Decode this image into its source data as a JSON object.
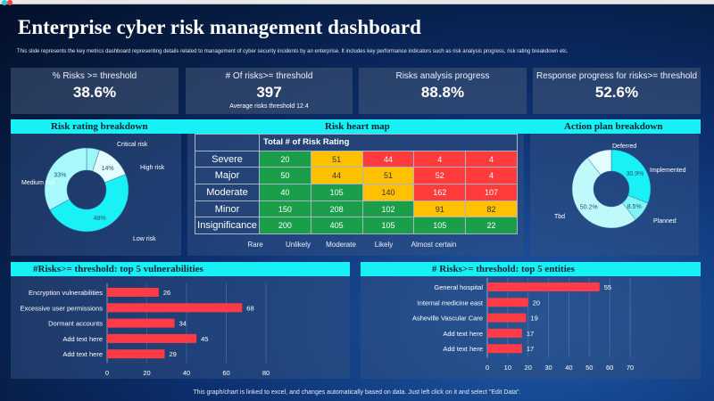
{
  "title": "Enterprise cyber risk management dashboard",
  "subtitle": "This slide represents the key metrics dashboard representing details related to management  of cyber security incidents by an enterprise. It includes key performance indicators such as risk analysis progress, risk rating breakdown etc.",
  "kpis": [
    {
      "label": "% Risks >= threshold",
      "value": "38.6%"
    },
    {
      "label": "# Of risks>= threshold",
      "value": "397",
      "sub": "Average risks threshold 12.4"
    },
    {
      "label": "Risks analysis progress",
      "value": "88.8%"
    },
    {
      "label": "Response progress for risks>= threshold",
      "value": "52.6%"
    }
  ],
  "sections": {
    "risk_rating": "Risk rating breakdown",
    "heat_map": "Risk heart map",
    "action_plan": "Action plan breakdown",
    "vulnerabilities": "#Risks>= threshold: top 5 vulnerabilities",
    "entities": "# Risks>= threshold: top 5 entities"
  },
  "footer": "This graph/chart is linked to excel,  and changes automatically based on data. Just left click on it and select \"Edit Data\".",
  "colors": {
    "cyan": "#17f0f5",
    "bar": "#ff3b47",
    "green": "#1a9e4a",
    "yellow": "#ffc000",
    "red": "#ff3b3b"
  },
  "chart_data": [
    {
      "type": "pie",
      "title": "Risk rating breakdown",
      "donut": true,
      "slices": [
        {
          "label": "Critical risk",
          "value": 5,
          "text": "",
          "color": "#9ff6f8"
        },
        {
          "label": "High risk",
          "value": 14,
          "text": "14%",
          "color": "#e4fdfe"
        },
        {
          "label": "Low risk",
          "value": 48,
          "text": "48%",
          "color": "#18f2f6"
        },
        {
          "label": "Medium risk",
          "value": 33,
          "text": "33%",
          "color": "#a8f9fb"
        }
      ]
    },
    {
      "type": "heatmap",
      "title": "Risk heart map",
      "header": "Total # of Risk Rating",
      "rows": [
        "Severe",
        "Major",
        "Moderate",
        "Minor",
        "Insignificance"
      ],
      "columns": [
        "Rare",
        "Unlikely",
        "Moderate",
        "Likely",
        "Almost certain"
      ],
      "values": [
        [
          20,
          51,
          44,
          4,
          4
        ],
        [
          50,
          44,
          51,
          52,
          4
        ],
        [
          40,
          105,
          140,
          162,
          107
        ],
        [
          150,
          208,
          102,
          91,
          82
        ],
        [
          200,
          405,
          105,
          105,
          22
        ]
      ],
      "levels": [
        [
          "g",
          "y",
          "r",
          "r",
          "r"
        ],
        [
          "g",
          "y",
          "y",
          "r",
          "r"
        ],
        [
          "g",
          "g",
          "y",
          "r",
          "r"
        ],
        [
          "g",
          "g",
          "g",
          "y",
          "y"
        ],
        [
          "g",
          "g",
          "g",
          "g",
          "g"
        ]
      ]
    },
    {
      "type": "pie",
      "title": "Action plan breakdown",
      "donut": true,
      "slices": [
        {
          "label": "Implemented",
          "value": 30.9,
          "text": "30.9%",
          "color": "#18f2f6"
        },
        {
          "label": "Planned",
          "value": 8.5,
          "text": "8.5%",
          "color": "#7ff4f7"
        },
        {
          "label": "Tbd",
          "value": 50.2,
          "text": "50.2%",
          "color": "#bff9fb"
        },
        {
          "label": "Deferred",
          "value": 10.4,
          "text": "",
          "color": "#e4fdfe"
        }
      ]
    },
    {
      "type": "bar",
      "orientation": "horizontal",
      "title": "#Risks>= threshold: top 5 vulnerabilities",
      "categories": [
        "Encryption vulnerabilities",
        "Excessive user permissions",
        "Dormant accounts",
        "Add text here",
        "Add text here"
      ],
      "values": [
        26,
        68,
        34,
        45,
        29
      ],
      "xlim": [
        0,
        80
      ],
      "ticks": [
        0,
        20,
        40,
        60,
        80
      ],
      "grid": true
    },
    {
      "type": "bar",
      "orientation": "horizontal",
      "title": "# Risks>= threshold: top 5 entities",
      "categories": [
        "General hospital",
        "Internal medicine east",
        "Asheville Vascular Care",
        "Add text here",
        "Add text here"
      ],
      "values": [
        55,
        20,
        19,
        17,
        17
      ],
      "xlim": [
        0,
        70
      ],
      "ticks": [
        0,
        10,
        20,
        30,
        40,
        50,
        60,
        70
      ],
      "grid": true
    }
  ]
}
